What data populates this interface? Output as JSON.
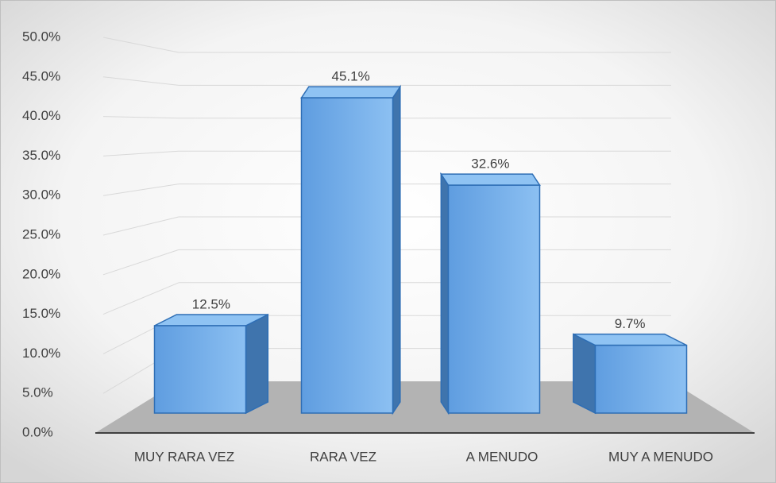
{
  "chart_data": {
    "type": "bar3d",
    "categories": [
      "MUY RARA VEZ",
      "RARA VEZ",
      "A MENUDO",
      "MUY A MENUDO"
    ],
    "values": [
      12.5,
      45.1,
      32.6,
      9.7
    ],
    "value_labels": [
      "12.5%",
      "45.1%",
      "32.6%",
      "9.7%"
    ],
    "color": "#6fa8e6",
    "ylim": [
      0,
      50
    ],
    "yticks": [
      {
        "value": 0,
        "label": "0.0%"
      },
      {
        "value": 5,
        "label": "5.0%"
      },
      {
        "value": 10,
        "label": "10.0%"
      },
      {
        "value": 15,
        "label": "15.0%"
      },
      {
        "value": 20,
        "label": "20.0%"
      },
      {
        "value": 25,
        "label": "25.0%"
      },
      {
        "value": 30,
        "label": "30.0%"
      },
      {
        "value": 35,
        "label": "35.0%"
      },
      {
        "value": 40,
        "label": "40.0%"
      },
      {
        "value": 45,
        "label": "45.0%"
      },
      {
        "value": 50,
        "label": "50.0%"
      }
    ],
    "grid": true
  }
}
